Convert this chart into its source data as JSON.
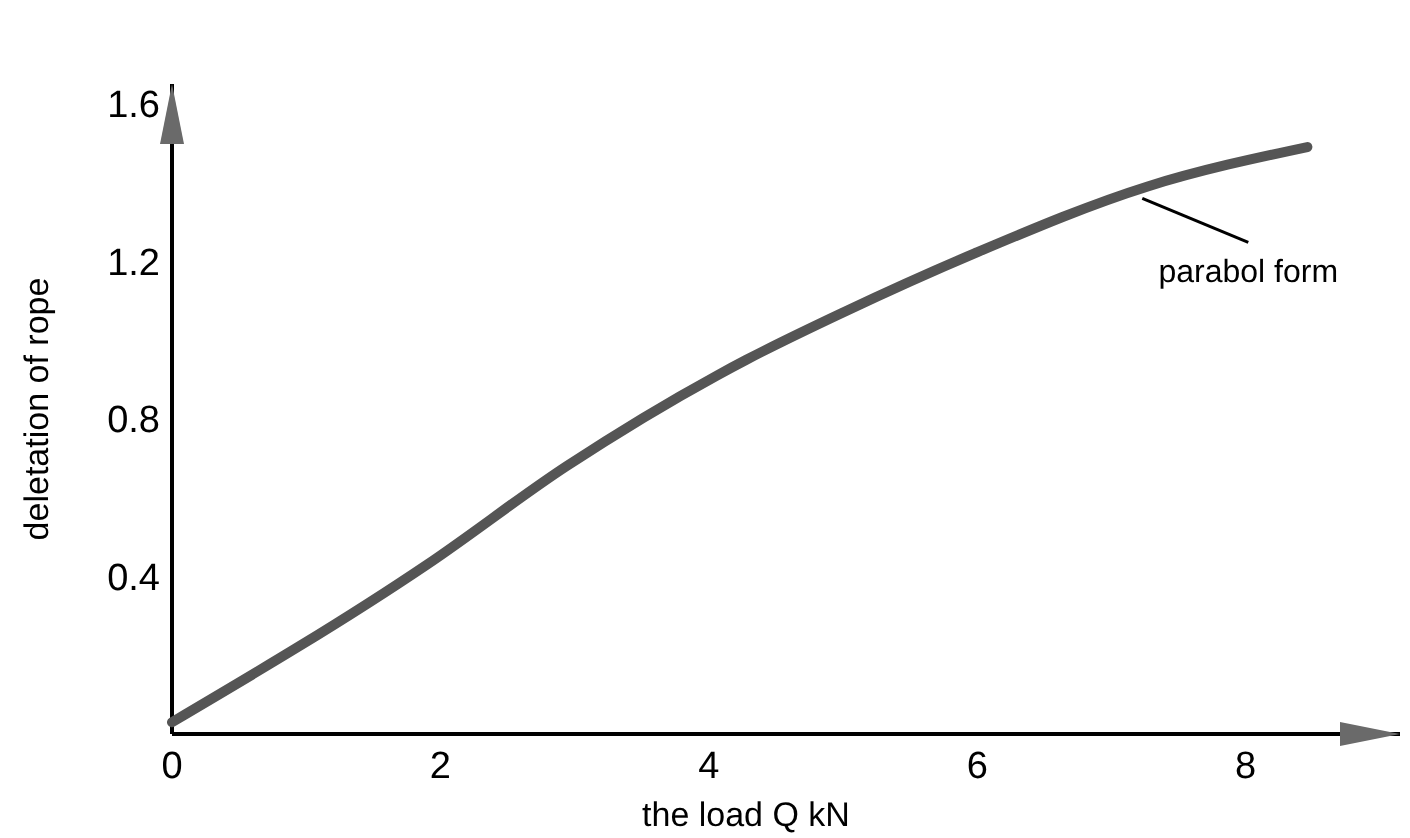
{
  "chart_data": {
    "type": "line",
    "xlabel": "the load  Q kN",
    "ylabel": "deletation of rope",
    "x": [
      0,
      1.9,
      2.94,
      4.06,
      4.28,
      5.0,
      5.98,
      7.27,
      8.46
    ],
    "series": [
      {
        "color": "#555555",
        "values": [
          0.03,
          0.43,
          0.68,
          0.91,
          0.95,
          1.07,
          1.22,
          1.39,
          1.49
        ]
      }
    ],
    "xlim": [
      0,
      9.15
    ],
    "ylim": [
      0,
      1.65
    ],
    "xticks": [
      0,
      2,
      4,
      6,
      8
    ],
    "yticks": [
      0.4,
      0.8,
      1.2,
      1.6
    ],
    "grid": false,
    "marker": "none",
    "line_style": "solid",
    "annotations": [
      {
        "text": "parabol form",
        "x": 7.2,
        "y": 1.38
      }
    ]
  }
}
